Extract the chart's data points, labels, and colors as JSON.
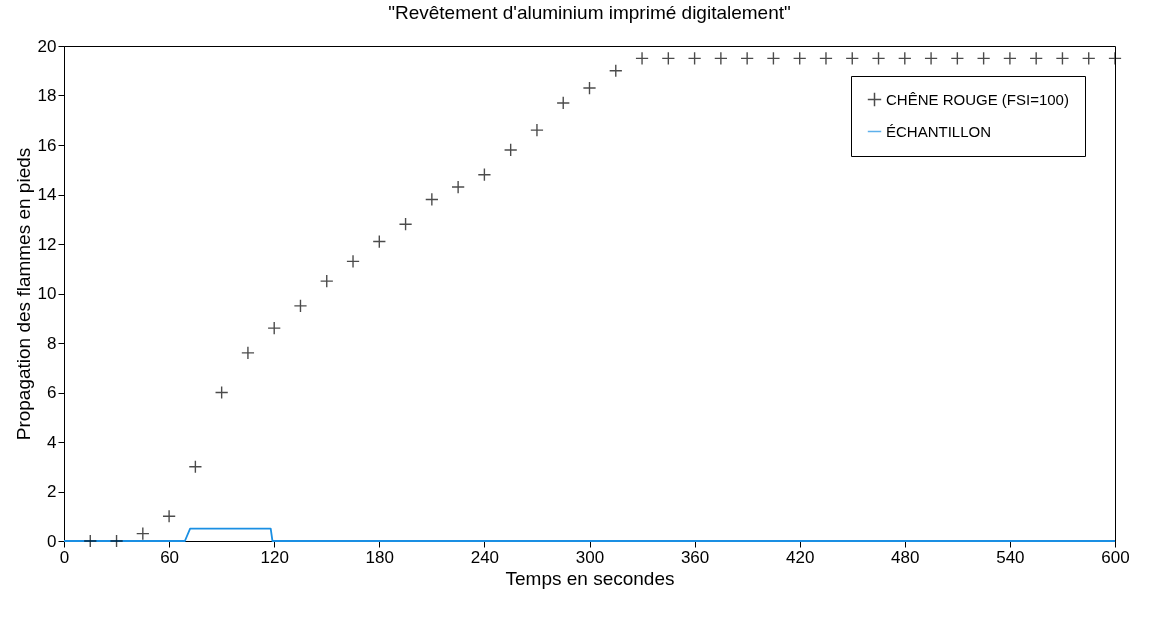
{
  "chart_data": {
    "type": "scatter",
    "title": "\"Revêtement d'aluminium imprimé digitalement\"",
    "xlabel": "Temps en secondes",
    "ylabel": "Propagation des flammes en pieds",
    "xlim": [
      0,
      600
    ],
    "xticks": [
      0,
      60,
      120,
      180,
      240,
      300,
      360,
      420,
      480,
      540,
      600
    ],
    "ylim": [
      0,
      20
    ],
    "yticks": [
      0,
      2,
      4,
      6,
      8,
      10,
      12,
      14,
      16,
      18,
      20
    ],
    "legend": "top right",
    "grid": false,
    "series": [
      {
        "name": "CHÊNE ROUGE (FSI=100)",
        "marker": "cross",
        "color": "#000000",
        "x": [
          15,
          30,
          45,
          60,
          75,
          90,
          105,
          120,
          135,
          150,
          165,
          180,
          195,
          210,
          225,
          240,
          255,
          270,
          285,
          300,
          315,
          330,
          345,
          360,
          375,
          390,
          405,
          420,
          435,
          450,
          465,
          480,
          495,
          510,
          525,
          540,
          555,
          570,
          585,
          600
        ],
        "values": [
          0,
          0,
          0.3,
          1,
          3,
          6,
          7.6,
          8.6,
          9.5,
          10.5,
          11.3,
          12.1,
          12.8,
          13.8,
          14.3,
          14.8,
          15.8,
          16.6,
          17.7,
          18.3,
          19,
          19.5,
          19.5,
          19.5,
          19.5,
          19.5,
          19.5,
          19.5,
          19.5,
          19.5,
          19.5,
          19.5,
          19.5,
          19.5,
          19.5,
          19.5,
          19.5,
          19.5,
          19.5,
          19.5
        ]
      },
      {
        "name": "ÉCHANTILLON",
        "type": "line",
        "line_style": "solid",
        "color": "#1a8fe3",
        "x": [
          0,
          69,
          72,
          118,
          119,
          600
        ],
        "values": [
          0,
          0,
          0.5,
          0.5,
          0,
          0
        ]
      }
    ]
  }
}
